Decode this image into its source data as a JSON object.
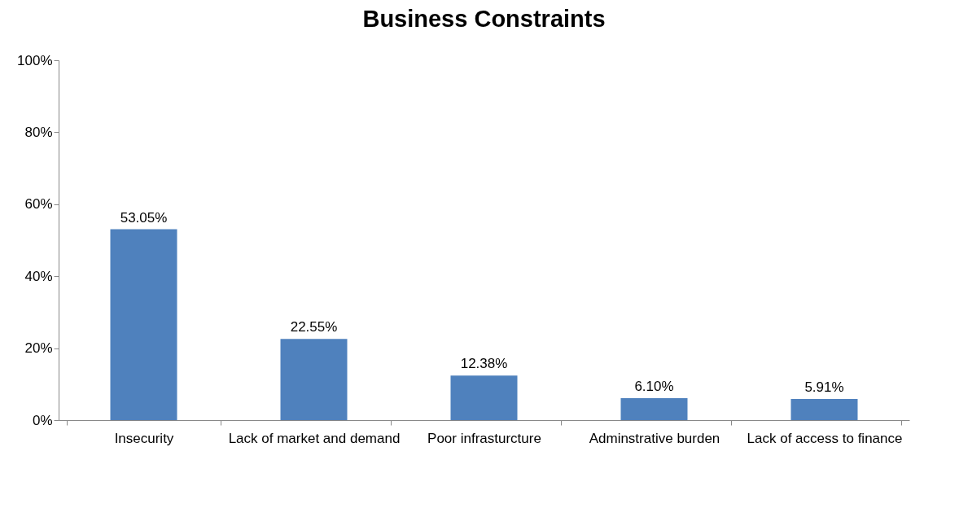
{
  "chart_data": {
    "type": "bar",
    "title": "Business Constraints",
    "categories": [
      "Insecurity",
      "Lack of market and demand",
      "Poor infrasturcture",
      "Adminstrative burden",
      "Lack of access to finance"
    ],
    "values": [
      53.05,
      22.55,
      12.38,
      6.1,
      5.91
    ],
    "value_labels": [
      "53.05%",
      "22.55%",
      "12.38%",
      "6.10%",
      "5.91%"
    ],
    "color": "#4f81bd",
    "ylim": [
      0,
      100
    ],
    "yticks": [
      {
        "value": 0,
        "label": "0%"
      },
      {
        "value": 20,
        "label": "20%"
      },
      {
        "value": 40,
        "label": "40%"
      },
      {
        "value": 60,
        "label": "60%"
      },
      {
        "value": 80,
        "label": "80%"
      },
      {
        "value": 100,
        "label": "100%"
      }
    ],
    "grid": false
  }
}
